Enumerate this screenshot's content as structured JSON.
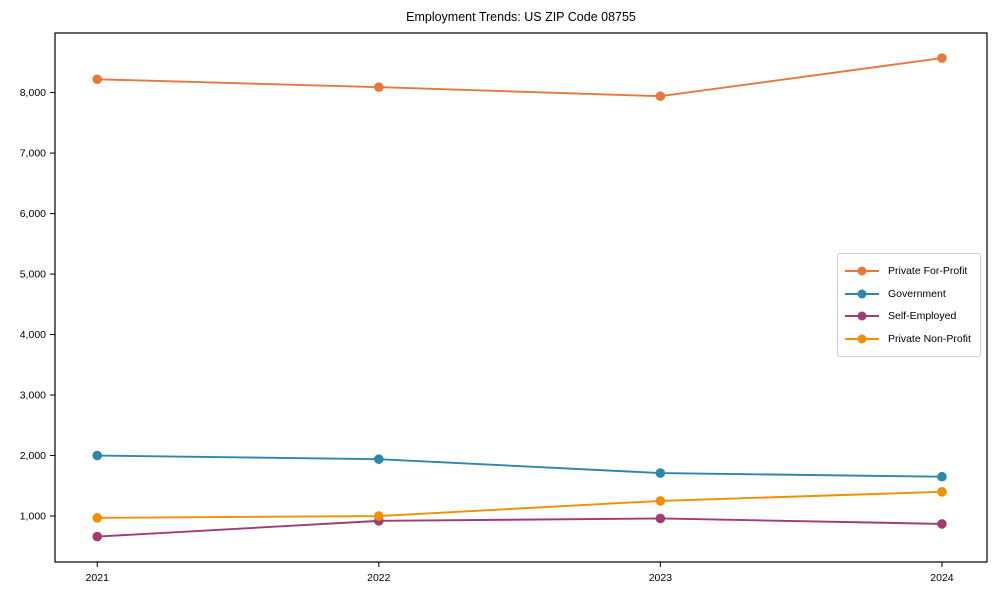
{
  "figure": {
    "title": "Employment Trends: US ZIP Code 08755"
  },
  "chart_data": {
    "type": "line",
    "title": "Employment Trends: US ZIP Code 08755",
    "xlabel": "",
    "ylabel": "",
    "x": [
      2021,
      2022,
      2023,
      2024
    ],
    "x_tick_labels": [
      "2021",
      "2022",
      "2023",
      "2024"
    ],
    "y_ticks": [
      1000,
      2000,
      3000,
      4000,
      5000,
      6000,
      7000,
      8000
    ],
    "y_tick_labels": [
      "1,000",
      "2,000",
      "3,000",
      "4,000",
      "5,000",
      "6,000",
      "7,000",
      "8,000"
    ],
    "xlim": [
      2020.85,
      2024.16
    ],
    "ylim": [
      240,
      8985
    ],
    "grid": false,
    "legend_position": "center-right",
    "marker": "circle",
    "axis_color": "#000000",
    "legend_border_color": "#cccccc",
    "series": [
      {
        "name": "Private For-Profit",
        "color": "#e8773d",
        "values": [
          8220,
          8090,
          7940,
          8570
        ]
      },
      {
        "name": "Government",
        "color": "#2e86ab",
        "values": [
          2000,
          1940,
          1710,
          1650
        ]
      },
      {
        "name": "Self-Employed",
        "color": "#a23b72",
        "values": [
          660,
          920,
          960,
          870
        ]
      },
      {
        "name": "Private Non-Profit",
        "color": "#f18f01",
        "values": [
          970,
          1000,
          1250,
          1400
        ]
      }
    ]
  }
}
